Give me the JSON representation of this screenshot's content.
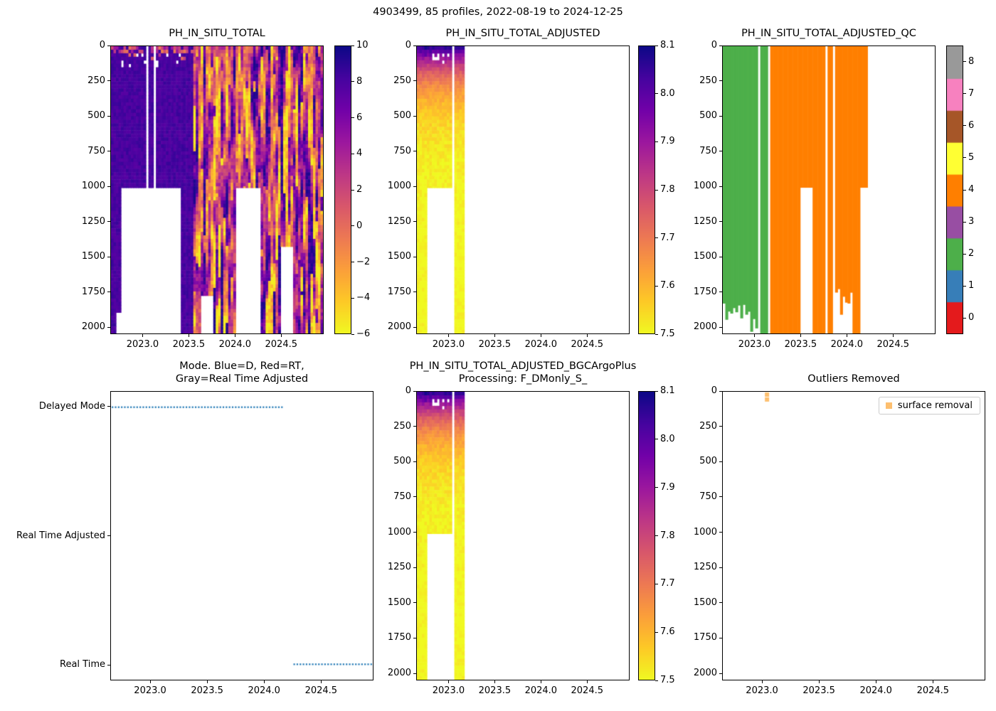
{
  "figure": {
    "suptitle": "4903499, 85 profiles, 2022-08-19 to 2024-12-25",
    "float_id": "4903499",
    "n_profiles": 85,
    "date_range": "2022-08-19 to 2024-12-25"
  },
  "palette": {
    "plasma_stops_low_to_high": [
      "#f0f921",
      "#fdca26",
      "#fb9f3a",
      "#ed7953",
      "#d8576b",
      "#bd3786",
      "#9c179e",
      "#7201a8",
      "#46039f",
      "#0d0887"
    ],
    "qc_colors": [
      "#e41a1c",
      "#377eb8",
      "#4daf4a",
      "#984ea3",
      "#ff7f00",
      "#ffff33",
      "#a65628",
      "#f781bf",
      "#999999"
    ],
    "mode_dot_color": "#1f77b4",
    "outlier_marker_color": "#fdbf6f",
    "axes_color": "#000000"
  },
  "chart_data": [
    {
      "id": "ph-in-situ-total",
      "type": "heatmap",
      "title": "PH_IN_SITU_TOTAL",
      "value_mode": "raw",
      "x_range": [
        2022.65,
        2024.96
      ],
      "y_range": [
        0,
        2050
      ],
      "x_ticks": [
        {
          "v": 2023.0,
          "label": "2023.0"
        },
        {
          "v": 2023.5,
          "label": "2023.5"
        },
        {
          "v": 2024.0,
          "label": "2024.0"
        },
        {
          "v": 2024.5,
          "label": "2024.5"
        }
      ],
      "y_ticks": [
        {
          "v": 0,
          "label": "0"
        },
        {
          "v": 250,
          "label": "250"
        },
        {
          "v": 500,
          "label": "500"
        },
        {
          "v": 750,
          "label": "750"
        },
        {
          "v": 1000,
          "label": "1000"
        },
        {
          "v": 1250,
          "label": "1250"
        },
        {
          "v": 1500,
          "label": "1500"
        },
        {
          "v": 1750,
          "label": "1750"
        },
        {
          "v": 2000,
          "label": "2000"
        }
      ],
      "colorbar": {
        "vmin": -6,
        "vmax": 10,
        "ticks": [
          {
            "v": 10,
            "label": "10"
          },
          {
            "v": 8,
            "label": "8"
          },
          {
            "v": 6,
            "label": "6"
          },
          {
            "v": 4,
            "label": "4"
          },
          {
            "v": 2,
            "label": "2"
          },
          {
            "v": 0,
            "label": "0"
          },
          {
            "v": -2,
            "label": "−2"
          },
          {
            "v": -4,
            "label": "−4"
          },
          {
            "v": -6,
            "label": "−6"
          }
        ]
      },
      "bands": [
        {
          "t0": 2022.65,
          "t1": 2022.71,
          "depth": 2050,
          "fill": "uniform",
          "value": 8.1
        },
        {
          "t0": 2022.71,
          "t1": 2022.76,
          "depth": 1900,
          "fill": "uniform",
          "value": 8.1
        },
        {
          "t0": 2022.76,
          "t1": 2023.02,
          "depth": 1010,
          "fill": "uniform",
          "value": 8.1
        },
        {
          "t0": 2023.06,
          "t1": 2023.12,
          "depth": 1010,
          "fill": "uniform",
          "value": 8.1
        },
        {
          "t0": 2023.15,
          "t1": 2023.42,
          "depth": 1010,
          "fill": "uniform",
          "value": 8.1
        },
        {
          "t0": 2023.42,
          "t1": 2023.56,
          "depth": 2050,
          "fill": "uniform",
          "value": 8.1
        },
        {
          "t0": 2023.56,
          "t1": 2023.64,
          "depth": 2050,
          "fill": "noisy",
          "value_range": [
            -5.5,
            9.5
          ]
        },
        {
          "t0": 2023.64,
          "t1": 2023.76,
          "depth": 1780,
          "fill": "noisy",
          "value_range": [
            -5.5,
            9.5
          ]
        },
        {
          "t0": 2023.76,
          "t1": 2024.0,
          "depth": 2050,
          "fill": "noisy",
          "value_range": [
            -5.5,
            9.5
          ]
        },
        {
          "t0": 2024.0,
          "t1": 2024.27,
          "depth": 1010,
          "fill": "noisy",
          "value_range": [
            -5.5,
            9.5
          ]
        },
        {
          "t0": 2024.27,
          "t1": 2024.5,
          "depth": 2050,
          "fill": "noisy",
          "value_range": [
            -5.5,
            9.5
          ]
        },
        {
          "t0": 2024.5,
          "t1": 2024.63,
          "depth": 1430,
          "fill": "noisy",
          "value_range": [
            -5.5,
            9.5
          ]
        },
        {
          "t0": 2024.63,
          "t1": 2024.96,
          "depth": 2050,
          "fill": "noisy",
          "value_range": [
            -5.5,
            9.5
          ]
        }
      ]
    },
    {
      "id": "ph-in-situ-total-adjusted",
      "type": "heatmap",
      "title": "PH_IN_SITU_TOTAL_ADJUSTED",
      "value_mode": "profile",
      "x_range": [
        2022.65,
        2024.96
      ],
      "y_range": [
        0,
        2050
      ],
      "x_ticks": [
        {
          "v": 2023.0,
          "label": "2023.0"
        },
        {
          "v": 2023.5,
          "label": "2023.5"
        },
        {
          "v": 2024.0,
          "label": "2024.0"
        },
        {
          "v": 2024.5,
          "label": "2024.5"
        }
      ],
      "y_ticks": [
        {
          "v": 0,
          "label": "0"
        },
        {
          "v": 250,
          "label": "250"
        },
        {
          "v": 500,
          "label": "500"
        },
        {
          "v": 750,
          "label": "750"
        },
        {
          "v": 1000,
          "label": "1000"
        },
        {
          "v": 1250,
          "label": "1250"
        },
        {
          "v": 1500,
          "label": "1500"
        },
        {
          "v": 1750,
          "label": "1750"
        },
        {
          "v": 2000,
          "label": "2000"
        }
      ],
      "colorbar": {
        "vmin": 7.5,
        "vmax": 8.1,
        "ticks": [
          {
            "v": 8.1,
            "label": "8.1"
          },
          {
            "v": 8.0,
            "label": "8.0"
          },
          {
            "v": 7.9,
            "label": "7.9"
          },
          {
            "v": 7.8,
            "label": "7.8"
          },
          {
            "v": 7.7,
            "label": "7.7"
          },
          {
            "v": 7.6,
            "label": "7.6"
          },
          {
            "v": 7.5,
            "label": "7.5"
          }
        ]
      },
      "profile": {
        "surface_value": 8.05,
        "deep_value": 7.5,
        "efold_m": 230
      },
      "bands": [
        {
          "t0": 2022.65,
          "t1": 2022.76,
          "depth": 2050
        },
        {
          "t0": 2022.76,
          "t1": 2023.02,
          "depth": 1010
        },
        {
          "t0": 2023.06,
          "t1": 2023.16,
          "depth": 2050
        }
      ]
    },
    {
      "id": "ph-in-situ-total-adjusted-qc",
      "type": "heatmap",
      "title": "PH_IN_SITU_TOTAL_ADJUSTED_QC",
      "value_mode": "qc",
      "x_range": [
        2022.65,
        2024.96
      ],
      "y_range": [
        0,
        2050
      ],
      "x_ticks": [
        {
          "v": 2023.0,
          "label": "2023.0"
        },
        {
          "v": 2023.5,
          "label": "2023.5"
        },
        {
          "v": 2024.0,
          "label": "2024.0"
        },
        {
          "v": 2024.5,
          "label": "2024.5"
        }
      ],
      "y_ticks": [
        {
          "v": 0,
          "label": "0"
        },
        {
          "v": 250,
          "label": "250"
        },
        {
          "v": 500,
          "label": "500"
        },
        {
          "v": 750,
          "label": "750"
        },
        {
          "v": 1000,
          "label": "1000"
        },
        {
          "v": 1250,
          "label": "1250"
        },
        {
          "v": 1500,
          "label": "1500"
        },
        {
          "v": 1750,
          "label": "1750"
        },
        {
          "v": 2000,
          "label": "2000"
        }
      ],
      "colorbar": {
        "vmin": 0,
        "vmax": 8,
        "discrete": true,
        "ticks": [
          {
            "v": 8,
            "label": "8"
          },
          {
            "v": 7,
            "label": "7"
          },
          {
            "v": 6,
            "label": "6"
          },
          {
            "v": 5,
            "label": "5"
          },
          {
            "v": 4,
            "label": "4"
          },
          {
            "v": 3,
            "label": "3"
          },
          {
            "v": 2,
            "label": "2"
          },
          {
            "v": 1,
            "label": "1"
          },
          {
            "v": 0,
            "label": "0"
          }
        ]
      },
      "bands": [
        {
          "t0": 2022.65,
          "t1": 2023.03,
          "depth": 2050,
          "qc": 2,
          "jagged_bottom": true
        },
        {
          "t0": 2023.065,
          "t1": 2023.14,
          "depth": 2050,
          "qc": 2
        },
        {
          "t0": 2023.17,
          "t1": 2023.5,
          "depth": 2050,
          "qc": 4
        },
        {
          "t0": 2023.5,
          "t1": 2023.62,
          "depth": 1010,
          "qc": 4
        },
        {
          "t0": 2023.62,
          "t1": 2023.775,
          "depth": 2050,
          "qc": 4
        },
        {
          "t0": 2023.805,
          "t1": 2023.855,
          "depth": 2050,
          "qc": 4
        },
        {
          "t0": 2023.885,
          "t1": 2024.05,
          "depth": 1950,
          "qc": 4,
          "jagged_bottom": true
        },
        {
          "t0": 2024.075,
          "t1": 2024.135,
          "depth": 2050,
          "qc": 4
        },
        {
          "t0": 2024.135,
          "t1": 2024.22,
          "depth": 1010,
          "qc": 4
        }
      ]
    },
    {
      "id": "mode",
      "type": "scatter",
      "title_lines": [
        "Mode. Blue=D, Red=RT,",
        "Gray=Real Time Adjusted"
      ],
      "x_range": [
        2022.65,
        2024.96
      ],
      "y_range": [
        2.12,
        -0.12
      ],
      "x_ticks": [
        {
          "v": 2023.0,
          "label": "2023.0"
        },
        {
          "v": 2023.5,
          "label": "2023.5"
        },
        {
          "v": 2024.0,
          "label": "2024.0"
        },
        {
          "v": 2024.5,
          "label": "2024.5"
        }
      ],
      "y_ticks": [
        {
          "v": 2,
          "label": "Delayed Mode"
        },
        {
          "v": 1,
          "label": "Real Time Adjusted"
        },
        {
          "v": 0,
          "label": "Real Time"
        }
      ],
      "segments": [
        {
          "label": "Delayed Mode",
          "level": 2,
          "t0": 2022.65,
          "t1": 2024.18
        },
        {
          "label": "Real Time",
          "level": 0,
          "t0": 2024.25,
          "t1": 2024.96
        }
      ]
    },
    {
      "id": "ph-adjusted-bgcargoplus",
      "type": "heatmap",
      "title_lines": [
        "PH_IN_SITU_TOTAL_ADJUSTED_BGCArgoPlus",
        "Processing: F_DMonly_S_"
      ],
      "value_mode": "profile",
      "x_range": [
        2022.65,
        2024.96
      ],
      "y_range": [
        0,
        2050
      ],
      "x_ticks": [
        {
          "v": 2023.0,
          "label": "2023.0"
        },
        {
          "v": 2023.5,
          "label": "2023.5"
        },
        {
          "v": 2024.0,
          "label": "2024.0"
        },
        {
          "v": 2024.5,
          "label": "2024.5"
        }
      ],
      "y_ticks": [
        {
          "v": 0,
          "label": "0"
        },
        {
          "v": 250,
          "label": "250"
        },
        {
          "v": 500,
          "label": "500"
        },
        {
          "v": 750,
          "label": "750"
        },
        {
          "v": 1000,
          "label": "1000"
        },
        {
          "v": 1250,
          "label": "1250"
        },
        {
          "v": 1500,
          "label": "1500"
        },
        {
          "v": 1750,
          "label": "1750"
        },
        {
          "v": 2000,
          "label": "2000"
        }
      ],
      "colorbar": {
        "vmin": 7.5,
        "vmax": 8.1,
        "ticks": [
          {
            "v": 8.1,
            "label": "8.1"
          },
          {
            "v": 8.0,
            "label": "8.0"
          },
          {
            "v": 7.9,
            "label": "7.9"
          },
          {
            "v": 7.8,
            "label": "7.8"
          },
          {
            "v": 7.7,
            "label": "7.7"
          },
          {
            "v": 7.6,
            "label": "7.6"
          },
          {
            "v": 7.5,
            "label": "7.5"
          }
        ]
      },
      "profile": {
        "surface_value": 8.05,
        "deep_value": 7.5,
        "efold_m": 230
      },
      "bands": [
        {
          "t0": 2022.65,
          "t1": 2022.76,
          "depth": 2050
        },
        {
          "t0": 2022.76,
          "t1": 2023.02,
          "depth": 1010
        },
        {
          "t0": 2023.06,
          "t1": 2023.16,
          "depth": 2050
        }
      ]
    },
    {
      "id": "outliers-removed",
      "type": "scatter",
      "title": "Outliers Removed",
      "x_range": [
        2022.65,
        2024.96
      ],
      "y_range": [
        0,
        2050
      ],
      "x_ticks": [
        {
          "v": 2023.0,
          "label": "2023.0"
        },
        {
          "v": 2023.5,
          "label": "2023.5"
        },
        {
          "v": 2024.0,
          "label": "2024.0"
        },
        {
          "v": 2024.5,
          "label": "2024.5"
        }
      ],
      "y_ticks": [
        {
          "v": 0,
          "label": "0"
        },
        {
          "v": 250,
          "label": "250"
        },
        {
          "v": 500,
          "label": "500"
        },
        {
          "v": 750,
          "label": "750"
        },
        {
          "v": 1000,
          "label": "1000"
        },
        {
          "v": 1250,
          "label": "1250"
        },
        {
          "v": 1500,
          "label": "1500"
        },
        {
          "v": 1750,
          "label": "1750"
        },
        {
          "v": 2000,
          "label": "2000"
        }
      ],
      "legend": {
        "label": "surface removal"
      },
      "points": [
        {
          "t": 2023.04,
          "depth": 20
        },
        {
          "t": 2023.04,
          "depth": 55
        }
      ]
    }
  ]
}
